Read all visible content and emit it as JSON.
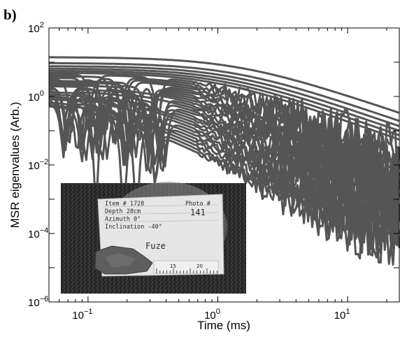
{
  "panel_label": "b)",
  "chart_data": {
    "type": "line",
    "xlabel": "Time (ms)",
    "ylabel": "MSR eigenvalues (Arb.)",
    "xscale": "log",
    "yscale": "log",
    "xlim": [
      0.05,
      25
    ],
    "ylim": [
      1e-06,
      100
    ],
    "x_ticks": [
      {
        "value": 0.1,
        "base": "10",
        "exp": "−1"
      },
      {
        "value": 1,
        "base": "10",
        "exp": "0"
      },
      {
        "value": 10,
        "base": "10",
        "exp": "1"
      }
    ],
    "y_ticks": [
      {
        "value": 100,
        "base": "10",
        "exp": "2"
      },
      {
        "value": 1,
        "base": "10",
        "exp": "0"
      },
      {
        "value": 0.01,
        "base": "10",
        "exp": "−2"
      },
      {
        "value": 0.0001,
        "base": "10",
        "exp": "−4"
      },
      {
        "value": 1e-06,
        "base": "10",
        "exp": "−6"
      }
    ],
    "grid": false,
    "line_color": "#555555",
    "num_series": 32,
    "representative_series": [
      {
        "x": [
          0.05,
          0.1,
          0.2,
          0.5,
          1,
          2,
          5,
          10,
          20,
          25
        ],
        "y": [
          15,
          9,
          4.5,
          1.2,
          0.3,
          0.07,
          0.015,
          0.006,
          0.003,
          0.0028
        ]
      },
      {
        "x": [
          0.05,
          0.1,
          0.2,
          0.5,
          1,
          2,
          5,
          10,
          20,
          25
        ],
        "y": [
          2.5,
          1.2,
          0.6,
          0.25,
          0.06,
          0.01,
          0.002,
          0.0008,
          0.0004,
          0.0003
        ]
      },
      {
        "x": [
          0.05,
          0.1,
          0.2,
          0.5,
          1,
          2,
          5,
          10,
          20,
          25
        ],
        "y": [
          1.5,
          0.3,
          0.05,
          0.04,
          0.02,
          0.004,
          0.0006,
          0.0002,
          0.0001,
          8e-05
        ]
      }
    ]
  },
  "inset_photo": {
    "notecard_lines": [
      "Item # 1728",
      "Depth 28cm",
      "Azimuth 0°",
      "Inclination -40°"
    ],
    "photo_label": "Photo #",
    "photo_number": "141",
    "caption": "Fuze",
    "ruler_labels": [
      "15",
      "20"
    ]
  }
}
